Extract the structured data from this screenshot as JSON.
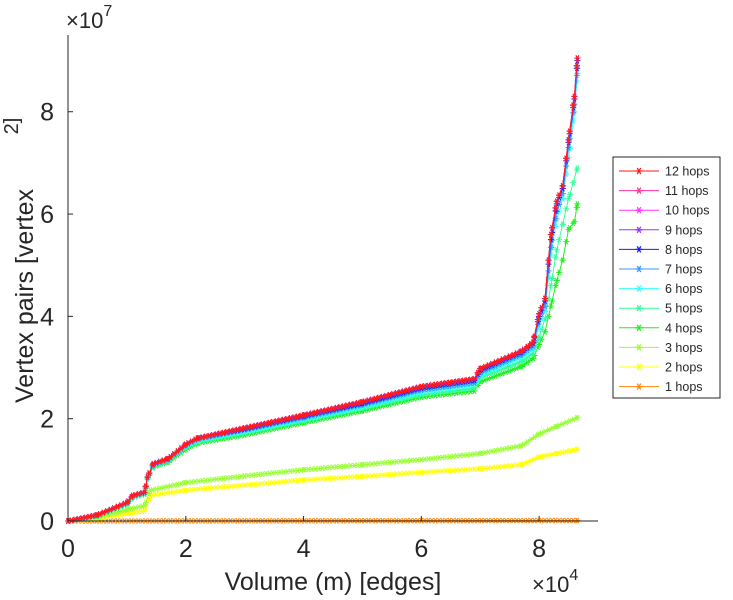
{
  "chart_data": {
    "type": "line",
    "xlabel": "Volume (m) [edges]",
    "ylabel": "Vertex pairs [vertex",
    "ylabel_sup": "2]",
    "x_multiplier": "×10",
    "x_multiplier_exp": "4",
    "y_multiplier": "×10",
    "y_multiplier_exp": "7",
    "xlim": [
      0,
      9
    ],
    "ylim": [
      0,
      9.5
    ],
    "xticks": [
      0,
      2,
      4,
      6,
      8
    ],
    "yticks": [
      0,
      2,
      4,
      6,
      8
    ],
    "grid": false,
    "legend_position": "right",
    "series": [
      {
        "name": "12 hops",
        "color": "#ff1a1a",
        "points": [
          [
            0,
            0
          ],
          [
            0.5,
            0.12
          ],
          [
            1.0,
            0.36
          ],
          [
            1.1,
            0.5
          ],
          [
            1.3,
            0.56
          ],
          [
            1.35,
            0.86
          ],
          [
            1.45,
            1.12
          ],
          [
            1.7,
            1.22
          ],
          [
            2.0,
            1.5
          ],
          [
            2.2,
            1.62
          ],
          [
            3,
            1.82
          ],
          [
            4,
            2.07
          ],
          [
            5,
            2.33
          ],
          [
            6,
            2.63
          ],
          [
            6.9,
            2.78
          ],
          [
            7.0,
            2.98
          ],
          [
            7.7,
            3.32
          ],
          [
            7.9,
            3.5
          ],
          [
            8.0,
            4.05
          ],
          [
            8.1,
            4.35
          ],
          [
            8.2,
            5.6
          ],
          [
            8.3,
            6.25
          ],
          [
            8.4,
            6.55
          ],
          [
            8.5,
            7.45
          ],
          [
            8.6,
            8.3
          ],
          [
            8.65,
            9.05
          ]
        ]
      },
      {
        "name": "11 hops",
        "color": "#ff3399",
        "points": [
          [
            0,
            0
          ],
          [
            0.5,
            0.12
          ],
          [
            1.0,
            0.36
          ],
          [
            1.1,
            0.5
          ],
          [
            1.3,
            0.56
          ],
          [
            1.35,
            0.86
          ],
          [
            1.45,
            1.12
          ],
          [
            1.7,
            1.22
          ],
          [
            2.0,
            1.5
          ],
          [
            2.2,
            1.62
          ],
          [
            3,
            1.82
          ],
          [
            4,
            2.07
          ],
          [
            5,
            2.33
          ],
          [
            6,
            2.63
          ],
          [
            6.9,
            2.78
          ],
          [
            7.0,
            2.98
          ],
          [
            7.7,
            3.32
          ],
          [
            7.9,
            3.5
          ],
          [
            8.0,
            4.05
          ],
          [
            8.1,
            4.35
          ],
          [
            8.2,
            5.6
          ],
          [
            8.3,
            6.25
          ],
          [
            8.4,
            6.55
          ],
          [
            8.5,
            7.45
          ],
          [
            8.6,
            8.3
          ],
          [
            8.65,
            9.05
          ]
        ]
      },
      {
        "name": "10 hops",
        "color": "#ff33ff",
        "points": [
          [
            0,
            0
          ],
          [
            0.5,
            0.12
          ],
          [
            1.0,
            0.36
          ],
          [
            1.1,
            0.5
          ],
          [
            1.3,
            0.56
          ],
          [
            1.35,
            0.86
          ],
          [
            1.45,
            1.12
          ],
          [
            1.7,
            1.22
          ],
          [
            2.0,
            1.5
          ],
          [
            2.2,
            1.62
          ],
          [
            3,
            1.82
          ],
          [
            4,
            2.07
          ],
          [
            5,
            2.33
          ],
          [
            6,
            2.63
          ],
          [
            6.9,
            2.78
          ],
          [
            7.0,
            2.98
          ],
          [
            7.7,
            3.32
          ],
          [
            7.9,
            3.5
          ],
          [
            8.0,
            4.05
          ],
          [
            8.1,
            4.35
          ],
          [
            8.2,
            5.6
          ],
          [
            8.3,
            6.25
          ],
          [
            8.4,
            6.55
          ],
          [
            8.5,
            7.45
          ],
          [
            8.6,
            8.3
          ],
          [
            8.65,
            9.05
          ]
        ]
      },
      {
        "name": "9 hops",
        "color": "#9933ff",
        "points": [
          [
            0,
            0
          ],
          [
            0.5,
            0.12
          ],
          [
            1.0,
            0.36
          ],
          [
            1.1,
            0.5
          ],
          [
            1.3,
            0.56
          ],
          [
            1.35,
            0.86
          ],
          [
            1.45,
            1.12
          ],
          [
            1.7,
            1.22
          ],
          [
            2.0,
            1.5
          ],
          [
            2.2,
            1.62
          ],
          [
            3,
            1.82
          ],
          [
            4,
            2.07
          ],
          [
            5,
            2.33
          ],
          [
            6,
            2.63
          ],
          [
            6.9,
            2.78
          ],
          [
            7.0,
            2.98
          ],
          [
            7.7,
            3.32
          ],
          [
            7.9,
            3.5
          ],
          [
            8.0,
            4.05
          ],
          [
            8.1,
            4.35
          ],
          [
            8.2,
            5.6
          ],
          [
            8.3,
            6.25
          ],
          [
            8.4,
            6.55
          ],
          [
            8.5,
            7.45
          ],
          [
            8.6,
            8.3
          ],
          [
            8.65,
            9.05
          ]
        ]
      },
      {
        "name": "8 hops",
        "color": "#1a1aff",
        "points": [
          [
            0,
            0
          ],
          [
            0.5,
            0.12
          ],
          [
            1.0,
            0.36
          ],
          [
            1.1,
            0.5
          ],
          [
            1.3,
            0.56
          ],
          [
            1.35,
            0.86
          ],
          [
            1.45,
            1.12
          ],
          [
            1.7,
            1.22
          ],
          [
            2.0,
            1.5
          ],
          [
            2.2,
            1.62
          ],
          [
            3,
            1.8
          ],
          [
            4,
            2.05
          ],
          [
            5,
            2.3
          ],
          [
            6,
            2.6
          ],
          [
            6.9,
            2.75
          ],
          [
            7.0,
            2.95
          ],
          [
            7.7,
            3.3
          ],
          [
            7.9,
            3.48
          ],
          [
            8.0,
            4.0
          ],
          [
            8.1,
            4.3
          ],
          [
            8.2,
            5.5
          ],
          [
            8.3,
            6.2
          ],
          [
            8.4,
            6.5
          ],
          [
            8.5,
            7.4
          ],
          [
            8.6,
            8.25
          ],
          [
            8.65,
            9.0
          ]
        ]
      },
      {
        "name": "7 hops",
        "color": "#3399ff",
        "points": [
          [
            0,
            0
          ],
          [
            0.5,
            0.11
          ],
          [
            1.0,
            0.35
          ],
          [
            1.1,
            0.49
          ],
          [
            1.3,
            0.55
          ],
          [
            1.35,
            0.85
          ],
          [
            1.45,
            1.1
          ],
          [
            1.7,
            1.2
          ],
          [
            2.0,
            1.48
          ],
          [
            2.2,
            1.6
          ],
          [
            3,
            1.78
          ],
          [
            4,
            2.02
          ],
          [
            5,
            2.27
          ],
          [
            6,
            2.56
          ],
          [
            6.9,
            2.7
          ],
          [
            7.0,
            2.9
          ],
          [
            7.7,
            3.25
          ],
          [
            7.9,
            3.42
          ],
          [
            8.0,
            3.95
          ],
          [
            8.1,
            4.2
          ],
          [
            8.2,
            5.35
          ],
          [
            8.3,
            6.05
          ],
          [
            8.4,
            6.4
          ],
          [
            8.5,
            7.3
          ],
          [
            8.6,
            8.15
          ],
          [
            8.65,
            8.85
          ]
        ]
      },
      {
        "name": "6 hops",
        "color": "#33ffff",
        "points": [
          [
            0,
            0
          ],
          [
            0.5,
            0.11
          ],
          [
            1.0,
            0.34
          ],
          [
            1.1,
            0.48
          ],
          [
            1.3,
            0.54
          ],
          [
            1.35,
            0.84
          ],
          [
            1.45,
            1.09
          ],
          [
            1.7,
            1.19
          ],
          [
            2.0,
            1.46
          ],
          [
            2.2,
            1.58
          ],
          [
            3,
            1.75
          ],
          [
            4,
            1.99
          ],
          [
            5,
            2.23
          ],
          [
            6,
            2.52
          ],
          [
            6.9,
            2.66
          ],
          [
            7.0,
            2.85
          ],
          [
            7.7,
            3.2
          ],
          [
            7.9,
            3.36
          ],
          [
            8.0,
            3.85
          ],
          [
            8.1,
            4.1
          ],
          [
            8.2,
            5.2
          ],
          [
            8.3,
            5.9
          ],
          [
            8.4,
            6.3
          ],
          [
            8.5,
            7.1
          ],
          [
            8.6,
            8.0
          ],
          [
            8.65,
            8.75
          ]
        ]
      },
      {
        "name": "5 hops",
        "color": "#33ff99",
        "points": [
          [
            0,
            0
          ],
          [
            0.5,
            0.1
          ],
          [
            1.0,
            0.33
          ],
          [
            1.1,
            0.47
          ],
          [
            1.3,
            0.53
          ],
          [
            1.35,
            0.83
          ],
          [
            1.45,
            1.08
          ],
          [
            1.7,
            1.18
          ],
          [
            2.0,
            1.44
          ],
          [
            2.2,
            1.55
          ],
          [
            3,
            1.72
          ],
          [
            4,
            1.96
          ],
          [
            5,
            2.2
          ],
          [
            6,
            2.47
          ],
          [
            6.9,
            2.6
          ],
          [
            7.0,
            2.8
          ],
          [
            7.7,
            3.12
          ],
          [
            7.9,
            3.28
          ],
          [
            8.0,
            3.6
          ],
          [
            8.1,
            3.95
          ],
          [
            8.2,
            4.6
          ],
          [
            8.3,
            5.3
          ],
          [
            8.4,
            5.8
          ],
          [
            8.5,
            6.3
          ],
          [
            8.65,
            6.9
          ]
        ]
      },
      {
        "name": "4 hops",
        "color": "#22ee22",
        "points": [
          [
            0,
            0
          ],
          [
            0.5,
            0.1
          ],
          [
            1.0,
            0.32
          ],
          [
            1.1,
            0.46
          ],
          [
            1.3,
            0.52
          ],
          [
            1.35,
            0.82
          ],
          [
            1.45,
            1.06
          ],
          [
            1.7,
            1.15
          ],
          [
            2.0,
            1.4
          ],
          [
            2.2,
            1.52
          ],
          [
            3,
            1.68
          ],
          [
            4,
            1.92
          ],
          [
            5,
            2.15
          ],
          [
            6,
            2.42
          ],
          [
            6.9,
            2.54
          ],
          [
            7.0,
            2.72
          ],
          [
            7.7,
            3.02
          ],
          [
            7.9,
            3.18
          ],
          [
            8.0,
            3.45
          ],
          [
            8.1,
            3.7
          ],
          [
            8.2,
            4.2
          ],
          [
            8.3,
            4.7
          ],
          [
            8.4,
            5.1
          ],
          [
            8.5,
            5.7
          ],
          [
            8.6,
            5.85
          ],
          [
            8.65,
            6.2
          ]
        ]
      },
      {
        "name": "3 hops",
        "color": "#99ff33",
        "points": [
          [
            0,
            0
          ],
          [
            0.5,
            0.07
          ],
          [
            1.0,
            0.22
          ],
          [
            1.3,
            0.3
          ],
          [
            1.4,
            0.6
          ],
          [
            2.0,
            0.75
          ],
          [
            3,
            0.88
          ],
          [
            4,
            1.0
          ],
          [
            5,
            1.1
          ],
          [
            6,
            1.2
          ],
          [
            7,
            1.32
          ],
          [
            7.7,
            1.47
          ],
          [
            8.0,
            1.7
          ],
          [
            8.3,
            1.85
          ],
          [
            8.65,
            2.02
          ]
        ]
      },
      {
        "name": "2 hops",
        "color": "#ffff00",
        "points": [
          [
            0,
            0
          ],
          [
            0.5,
            0.05
          ],
          [
            1.0,
            0.15
          ],
          [
            1.3,
            0.2
          ],
          [
            1.4,
            0.5
          ],
          [
            2.0,
            0.6
          ],
          [
            3,
            0.7
          ],
          [
            4,
            0.8
          ],
          [
            5,
            0.87
          ],
          [
            6,
            0.95
          ],
          [
            7,
            1.02
          ],
          [
            7.7,
            1.1
          ],
          [
            8.0,
            1.25
          ],
          [
            8.3,
            1.32
          ],
          [
            8.65,
            1.4
          ]
        ]
      },
      {
        "name": "1 hops",
        "color": "#ff8811",
        "points": [
          [
            0,
            0
          ],
          [
            8.65,
            0.01
          ]
        ]
      }
    ]
  }
}
